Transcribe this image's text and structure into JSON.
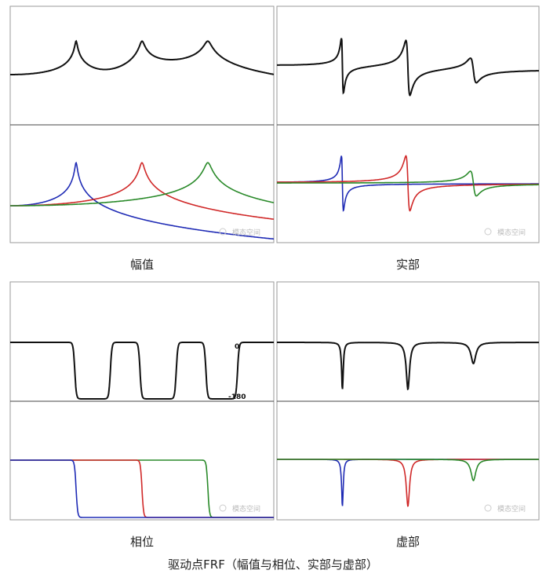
{
  "panels": {
    "magnitude": {
      "caption": "幅值",
      "watermark": "模态空间"
    },
    "real": {
      "caption": "实部",
      "watermark": "模态空间"
    },
    "phase": {
      "caption": "相位",
      "watermark": "模态空间",
      "label_top": "0",
      "label_bottom": "-180"
    },
    "imag": {
      "caption": "虚部",
      "watermark": "模态空间"
    }
  },
  "overall_caption": "驱动点FRF（幅值与相位、实部与虚部）",
  "colors": {
    "sum": "#111111",
    "mode1": "#1f2bb5",
    "mode2": "#d02828",
    "mode3": "#2a8a2a",
    "border": "#9a9a9a",
    "divider": "#444444",
    "bg": "#ffffff"
  },
  "modes": [
    {
      "name": "mode1",
      "fn": 1.0,
      "zeta": 0.015
    },
    {
      "name": "mode2",
      "fn": 2.0,
      "zeta": 0.015
    },
    {
      "name": "mode3",
      "fn": 3.0,
      "zeta": 0.015
    }
  ]
}
